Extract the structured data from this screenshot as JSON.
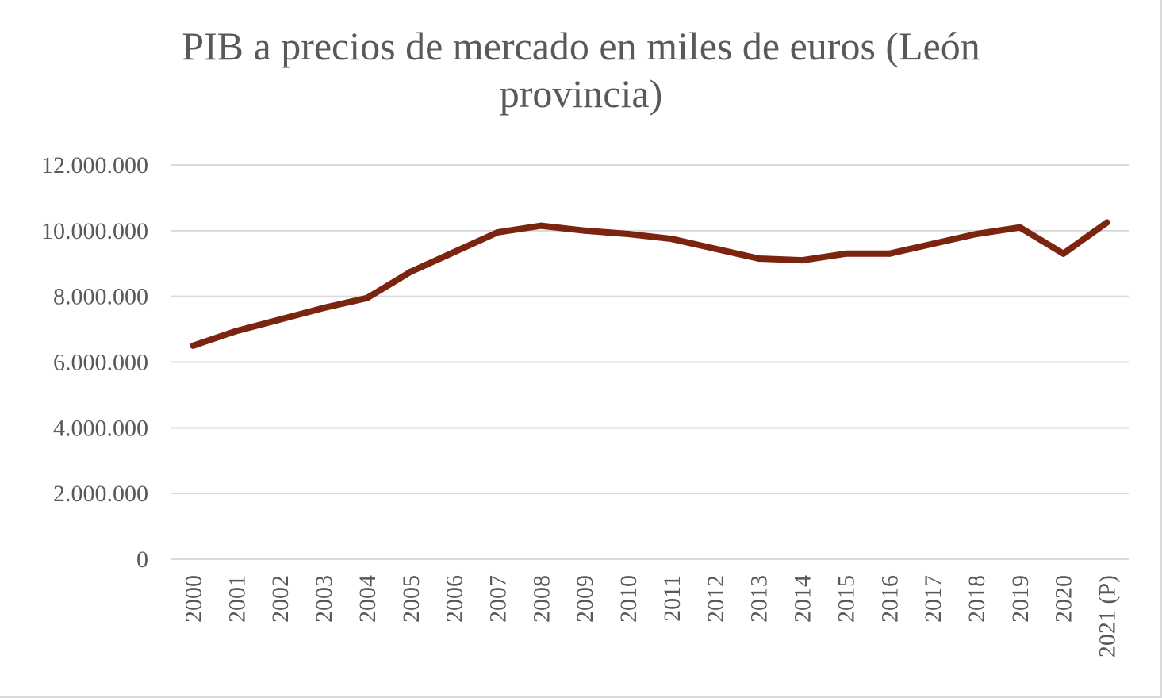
{
  "chart_data": {
    "type": "line",
    "title": "PIB a precios de mercado  en miles de euros (León provincia)",
    "categories": [
      "2000",
      "2001",
      "2002",
      "2003",
      "2004",
      "2005",
      "2006",
      "2007",
      "2008",
      "2009",
      "2010",
      "2011",
      "2012",
      "2013",
      "2014",
      "2015",
      "2016",
      "2017",
      "2018",
      "2019",
      "2020",
      "2021 (P)"
    ],
    "series": [
      {
        "color": "#7b2410",
        "values": [
          6500000,
          6950000,
          7300000,
          7650000,
          7950000,
          8750000,
          9350000,
          9950000,
          10150000,
          10000000,
          9900000,
          9750000,
          9450000,
          9150000,
          9100000,
          9300000,
          9300000,
          9600000,
          9900000,
          10100000,
          9300000,
          10250000
        ]
      }
    ],
    "y_ticks": [
      "0",
      "2.000.000",
      "4.000.000",
      "6.000.000",
      "8.000.000",
      "10.000.000",
      "12.000.000"
    ],
    "ylim": [
      0,
      12000000
    ],
    "grid": true,
    "legend": "none"
  }
}
